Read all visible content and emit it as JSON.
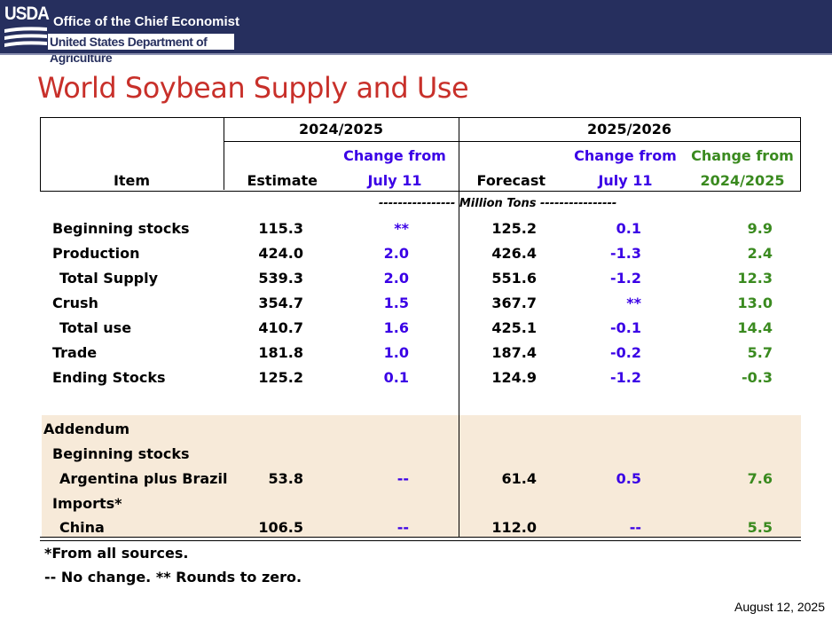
{
  "header": {
    "logo_text": "USDA",
    "office": "Office of the Chief Economist",
    "department": "United States Department of Agriculture"
  },
  "title": "World Soybean Supply and Use",
  "table": {
    "col_item": "Item",
    "year1": "2024/2025",
    "year2": "2025/2026",
    "estimate": "Estimate",
    "change_from": "Change from",
    "july11": "July 11",
    "forecast": "Forecast",
    "change_from_2": "Change from",
    "july11_2": "July 11",
    "change_from_3": "Change from",
    "prev_year": "2024/2025",
    "units": "---------------- Million Tons ----------------",
    "rows": [
      {
        "label": "Beginning stocks",
        "est": "115.3",
        "chg1": "**",
        "fc": "125.2",
        "chg2": "0.1",
        "chg3": "9.9"
      },
      {
        "label": "Production",
        "est": "424.0",
        "chg1": "2.0",
        "fc": "426.4",
        "chg2": "-1.3",
        "chg3": "2.4"
      },
      {
        "label": "Total Supply",
        "est": "539.3",
        "chg1": "2.0",
        "fc": "551.6",
        "chg2": "-1.2",
        "chg3": "12.3"
      },
      {
        "label": "Crush",
        "est": "354.7",
        "chg1": "1.5",
        "fc": "367.7",
        "chg2": "**",
        "chg3": "13.0"
      },
      {
        "label": "Total use",
        "est": "410.7",
        "chg1": "1.6",
        "fc": "425.1",
        "chg2": "-0.1",
        "chg3": "14.4"
      },
      {
        "label": "Trade",
        "est": "181.8",
        "chg1": "1.0",
        "fc": "187.4",
        "chg2": "-0.2",
        "chg3": "5.7"
      },
      {
        "label": "Ending Stocks",
        "est": "125.2",
        "chg1": "0.1",
        "fc": "124.9",
        "chg2": "-1.2",
        "chg3": "-0.3"
      }
    ],
    "addendum": {
      "label": "Addendum",
      "beg_stocks": "Beginning stocks",
      "argbra": {
        "label": "Argentina plus Brazil",
        "est": "53.8",
        "chg1": "--",
        "fc": "61.4",
        "chg2": "0.5",
        "chg3": "7.6"
      },
      "imports": "Imports*",
      "china": {
        "label": "China",
        "est": "106.5",
        "chg1": "--",
        "fc": "112.0",
        "chg2": "--",
        "chg3": "5.5"
      }
    }
  },
  "footnotes": {
    "sources": "*From all sources.",
    "legend": "-- No change.  ** Rounds to zero."
  },
  "date": "August 12, 2025"
}
